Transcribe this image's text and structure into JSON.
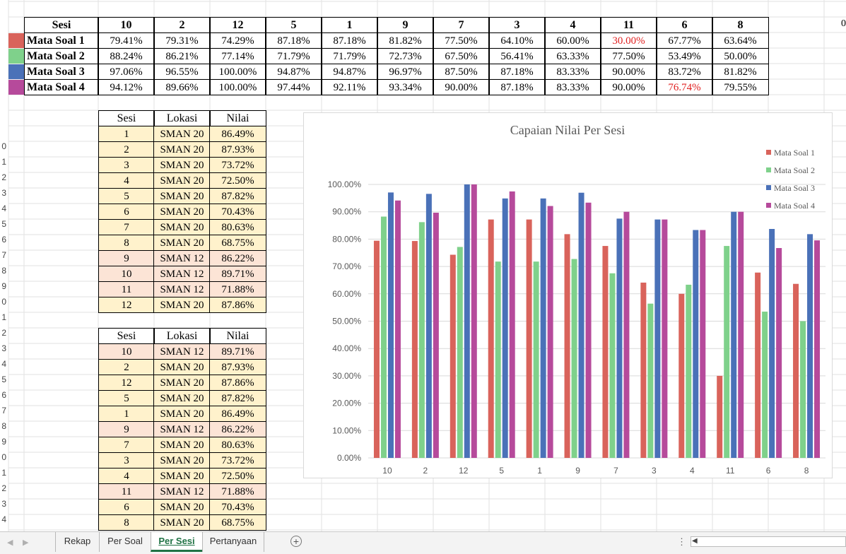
{
  "top_table": {
    "header_label": "Sesi",
    "sessions": [
      "10",
      "2",
      "12",
      "5",
      "1",
      "9",
      "7",
      "3",
      "4",
      "11",
      "6",
      "8"
    ],
    "rows": [
      {
        "label": "Mata Soal 1",
        "color": "#d9635b",
        "values": [
          "79.41%",
          "79.31%",
          "74.29%",
          "87.18%",
          "87.18%",
          "81.82%",
          "77.50%",
          "64.10%",
          "60.00%",
          "30.00%",
          "67.77%",
          "63.64%"
        ],
        "red_cells": [
          9
        ]
      },
      {
        "label": "Mata Soal 2",
        "color": "#7fd18b",
        "values": [
          "88.24%",
          "86.21%",
          "77.14%",
          "71.79%",
          "71.79%",
          "72.73%",
          "67.50%",
          "56.41%",
          "63.33%",
          "77.50%",
          "53.49%",
          "50.00%"
        ],
        "red_cells": []
      },
      {
        "label": "Mata Soal 3",
        "color": "#4a71b8",
        "values": [
          "97.06%",
          "96.55%",
          "100.00%",
          "94.87%",
          "94.87%",
          "96.97%",
          "87.50%",
          "87.18%",
          "83.33%",
          "90.00%",
          "83.72%",
          "81.82%"
        ],
        "red_cells": []
      },
      {
        "label": "Mata Soal 4",
        "color": "#b64a9b",
        "values": [
          "94.12%",
          "89.66%",
          "100.00%",
          "97.44%",
          "92.11%",
          "93.34%",
          "90.00%",
          "87.18%",
          "83.33%",
          "90.00%",
          "76.74%",
          "79.55%"
        ],
        "red_cells": [
          10
        ]
      }
    ],
    "overflow_text": "0"
  },
  "row_numbers": [
    "0",
    "1",
    "2",
    "3",
    "4",
    "5",
    "6",
    "7",
    "8",
    "9",
    "0",
    "1",
    "2",
    "3",
    "4",
    "5",
    "6",
    "7",
    "8",
    "9",
    "0",
    "1",
    "2",
    "3",
    "4"
  ],
  "table1": {
    "headers": [
      "Sesi",
      "Lokasi",
      "Nilai"
    ],
    "rows": [
      {
        "sesi": "1",
        "lokasi": "SMAN 20",
        "nilai": "86.49%",
        "fill": "#fff2cc"
      },
      {
        "sesi": "2",
        "lokasi": "SMAN 20",
        "nilai": "87.93%",
        "fill": "#fff2cc"
      },
      {
        "sesi": "3",
        "lokasi": "SMAN 20",
        "nilai": "73.72%",
        "fill": "#fff2cc"
      },
      {
        "sesi": "4",
        "lokasi": "SMAN 20",
        "nilai": "72.50%",
        "fill": "#fff2cc"
      },
      {
        "sesi": "5",
        "lokasi": "SMAN 20",
        "nilai": "87.82%",
        "fill": "#fff2cc"
      },
      {
        "sesi": "6",
        "lokasi": "SMAN 20",
        "nilai": "70.43%",
        "fill": "#fff2cc"
      },
      {
        "sesi": "7",
        "lokasi": "SMAN 20",
        "nilai": "80.63%",
        "fill": "#fff2cc"
      },
      {
        "sesi": "8",
        "lokasi": "SMAN 20",
        "nilai": "68.75%",
        "fill": "#fff2cc"
      },
      {
        "sesi": "9",
        "lokasi": "SMAN 12",
        "nilai": "86.22%",
        "fill": "#fce4d6"
      },
      {
        "sesi": "10",
        "lokasi": "SMAN 12",
        "nilai": "89.71%",
        "fill": "#fce4d6"
      },
      {
        "sesi": "11",
        "lokasi": "SMAN 12",
        "nilai": "71.88%",
        "fill": "#fce4d6"
      },
      {
        "sesi": "12",
        "lokasi": "SMAN 20",
        "nilai": "87.86%",
        "fill": "#fff2cc"
      }
    ]
  },
  "table2": {
    "headers": [
      "Sesi",
      "Lokasi",
      "Nilai"
    ],
    "rows": [
      {
        "sesi": "10",
        "lokasi": "SMAN 12",
        "nilai": "89.71%",
        "fill": "#fce4d6"
      },
      {
        "sesi": "2",
        "lokasi": "SMAN 20",
        "nilai": "87.93%",
        "fill": "#fff2cc"
      },
      {
        "sesi": "12",
        "lokasi": "SMAN 20",
        "nilai": "87.86%",
        "fill": "#fff2cc"
      },
      {
        "sesi": "5",
        "lokasi": "SMAN 20",
        "nilai": "87.82%",
        "fill": "#fff2cc"
      },
      {
        "sesi": "1",
        "lokasi": "SMAN 20",
        "nilai": "86.49%",
        "fill": "#fff2cc"
      },
      {
        "sesi": "9",
        "lokasi": "SMAN 12",
        "nilai": "86.22%",
        "fill": "#fce4d6"
      },
      {
        "sesi": "7",
        "lokasi": "SMAN 20",
        "nilai": "80.63%",
        "fill": "#fff2cc"
      },
      {
        "sesi": "3",
        "lokasi": "SMAN 20",
        "nilai": "73.72%",
        "fill": "#fff2cc"
      },
      {
        "sesi": "4",
        "lokasi": "SMAN 20",
        "nilai": "72.50%",
        "fill": "#fff2cc"
      },
      {
        "sesi": "11",
        "lokasi": "SMAN 12",
        "nilai": "71.88%",
        "fill": "#fce4d6"
      },
      {
        "sesi": "6",
        "lokasi": "SMAN 20",
        "nilai": "70.43%",
        "fill": "#fff2cc"
      },
      {
        "sesi": "8",
        "lokasi": "SMAN 20",
        "nilai": "68.75%",
        "fill": "#fff2cc"
      }
    ]
  },
  "chart_data": {
    "type": "bar",
    "title": "Capaian Nilai Per Sesi",
    "categories": [
      "10",
      "2",
      "12",
      "5",
      "1",
      "9",
      "7",
      "3",
      "4",
      "11",
      "6",
      "8"
    ],
    "series": [
      {
        "name": "Mata Soal 1",
        "color": "#d9635b",
        "values": [
          79.41,
          79.31,
          74.29,
          87.18,
          87.18,
          81.82,
          77.5,
          64.1,
          60.0,
          30.0,
          67.77,
          63.64
        ]
      },
      {
        "name": "Mata Soal 2",
        "color": "#7fd18b",
        "values": [
          88.24,
          86.21,
          77.14,
          71.79,
          71.79,
          72.73,
          67.5,
          56.41,
          63.33,
          77.5,
          53.49,
          50.0
        ]
      },
      {
        "name": "Mata Soal 3",
        "color": "#4a71b8",
        "values": [
          97.06,
          96.55,
          100.0,
          94.87,
          94.87,
          96.97,
          87.5,
          87.18,
          83.33,
          90.0,
          83.72,
          81.82
        ]
      },
      {
        "name": "Mata Soal 4",
        "color": "#b64a9b",
        "values": [
          94.12,
          89.66,
          100.0,
          97.44,
          92.11,
          93.34,
          90.0,
          87.18,
          83.33,
          90.0,
          76.74,
          79.55
        ]
      }
    ],
    "yticks": [
      "0.00%",
      "10.00%",
      "20.00%",
      "30.00%",
      "40.00%",
      "50.00%",
      "60.00%",
      "70.00%",
      "80.00%",
      "90.00%",
      "100.00%"
    ],
    "ylim": [
      0,
      100
    ],
    "grid": true,
    "legend_position": "top-right"
  },
  "tabs": {
    "sheets": [
      "Rekap",
      "Per Soal",
      "Per Sesi",
      "Pertanyaan"
    ],
    "active_index": 2,
    "add_icon": "plus-circle-icon",
    "left_arrow": "◀",
    "right_arrow": "▶",
    "dots": "⋮",
    "scroll_left": "◀"
  }
}
